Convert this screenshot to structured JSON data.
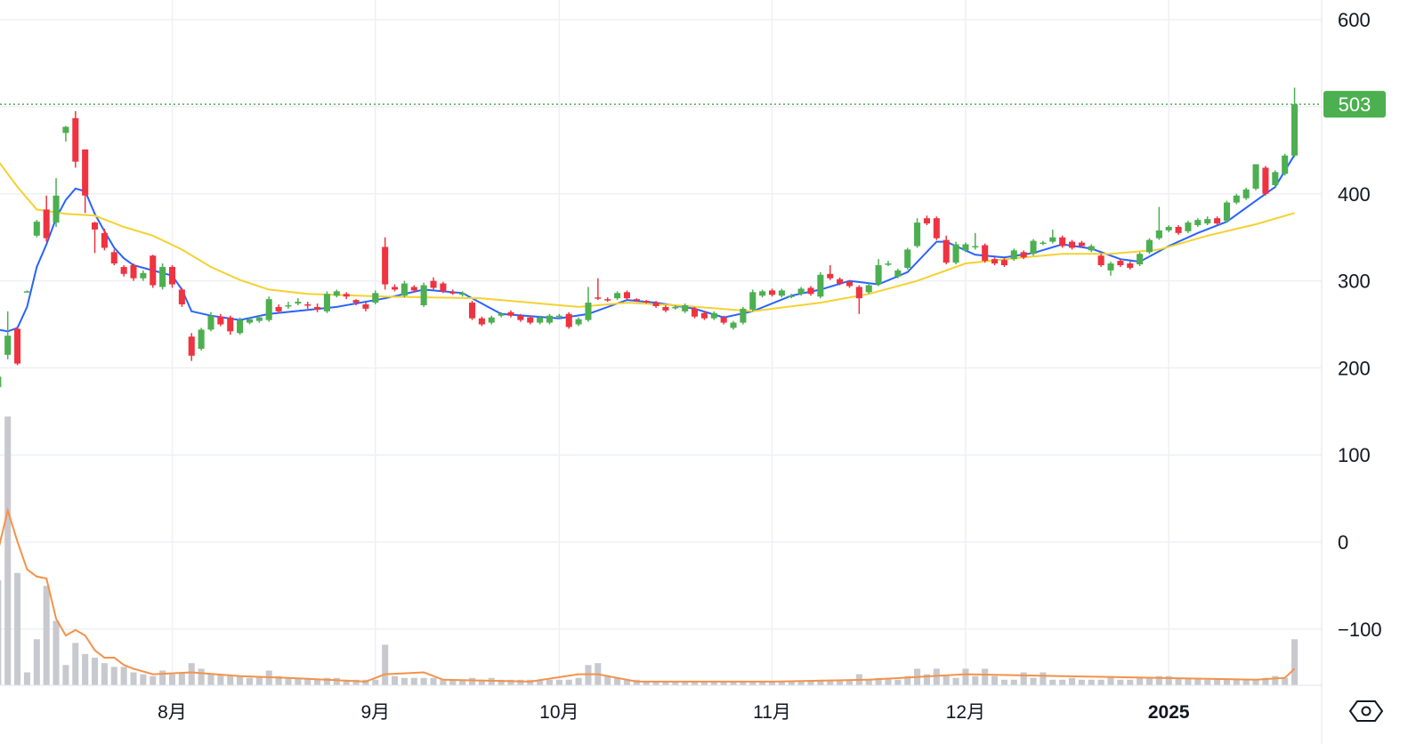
{
  "chart_data": {
    "type": "candlestick",
    "up_color": "#4caf50",
    "down_color": "#ef3340",
    "xlim": [
      0.2,
      136.8
    ],
    "xticks": [
      {
        "value": 18,
        "label": "8月"
      },
      {
        "value": 39,
        "label": "9月"
      },
      {
        "value": 58,
        "label": "10月"
      },
      {
        "value": 80,
        "label": "11月"
      },
      {
        "value": 100,
        "label": "12月"
      },
      {
        "value": 121,
        "label": "2025",
        "bold": true
      }
    ],
    "ylim": [
      -164.6,
      622.7
    ],
    "yticks": [
      600,
      500,
      400,
      300,
      200,
      100,
      0,
      {
        "value": -100,
        "label": "−100"
      }
    ],
    "grid": true,
    "last_line_color": "#4caf50",
    "ohlc": [
      [
        178,
        195,
        172,
        190
      ],
      [
        215,
        265,
        210,
        237
      ],
      [
        245,
        248,
        203,
        205
      ],
      [
        288,
        289,
        287,
        288
      ],
      [
        352,
        370,
        350,
        368
      ],
      [
        382,
        398,
        345,
        349
      ],
      [
        367,
        418,
        362,
        398
      ],
      [
        470,
        478,
        460,
        477
      ],
      [
        487,
        495,
        430,
        437
      ],
      [
        451,
        451,
        378,
        398
      ],
      [
        367,
        368,
        332,
        359
      ],
      [
        355,
        360,
        335,
        338
      ],
      [
        333,
        336,
        318,
        320
      ],
      [
        316,
        318,
        305,
        308
      ],
      [
        318,
        320,
        300,
        303
      ],
      [
        303,
        312,
        300,
        309
      ],
      [
        329,
        330,
        292,
        295
      ],
      [
        293,
        320,
        290,
        316
      ],
      [
        316,
        318,
        292,
        296
      ],
      [
        290,
        292,
        270,
        273
      ],
      [
        236,
        240,
        208,
        214
      ],
      [
        222,
        246,
        220,
        244
      ],
      [
        244,
        264,
        242,
        260
      ],
      [
        259,
        262,
        248,
        250
      ],
      [
        258,
        260,
        238,
        242
      ],
      [
        240,
        258,
        238,
        255
      ],
      [
        252,
        258,
        250,
        256
      ],
      [
        254,
        260,
        252,
        258
      ],
      [
        255,
        282,
        253,
        279
      ],
      [
        270,
        273,
        263,
        265
      ],
      [
        271,
        276,
        268,
        272
      ],
      [
        274,
        280,
        272,
        276
      ],
      [
        273,
        276,
        268,
        272
      ],
      [
        270,
        274,
        264,
        267
      ],
      [
        265,
        288,
        263,
        285
      ],
      [
        283,
        290,
        281,
        288
      ],
      [
        285,
        287,
        279,
        282
      ],
      [
        278,
        279,
        272,
        275
      ],
      [
        273,
        275,
        265,
        268
      ],
      [
        275,
        289,
        273,
        286
      ],
      [
        339,
        350,
        290,
        296
      ],
      [
        293,
        296,
        288,
        290
      ],
      [
        283,
        300,
        281,
        297
      ],
      [
        293,
        295,
        287,
        289
      ],
      [
        272,
        298,
        270,
        295
      ],
      [
        300,
        304,
        290,
        292
      ],
      [
        297,
        299,
        286,
        288
      ],
      [
        287,
        290,
        284,
        286
      ],
      [
        284,
        288,
        282,
        286
      ],
      [
        275,
        277,
        255,
        257
      ],
      [
        257,
        259,
        248,
        250
      ],
      [
        252,
        260,
        250,
        258
      ],
      [
        260,
        264,
        258,
        262
      ],
      [
        264,
        266,
        258,
        260
      ],
      [
        260,
        262,
        253,
        255
      ],
      [
        258,
        260,
        250,
        252
      ],
      [
        252,
        260,
        250,
        258
      ],
      [
        252,
        262,
        250,
        260
      ],
      [
        259,
        262,
        257,
        260
      ],
      [
        262,
        264,
        245,
        247
      ],
      [
        250,
        258,
        248,
        256
      ],
      [
        255,
        293,
        253,
        275
      ],
      [
        281,
        303,
        278,
        280
      ],
      [
        279,
        281,
        276,
        278
      ],
      [
        280,
        288,
        278,
        286
      ],
      [
        287,
        289,
        278,
        280
      ],
      [
        279,
        280,
        276,
        278
      ],
      [
        277,
        278,
        274,
        276
      ],
      [
        275,
        277,
        269,
        271
      ],
      [
        270,
        272,
        264,
        266
      ],
      [
        269,
        272,
        267,
        270
      ],
      [
        265,
        274,
        263,
        272
      ],
      [
        268,
        270,
        257,
        259
      ],
      [
        263,
        265,
        255,
        257
      ],
      [
        257,
        265,
        255,
        263
      ],
      [
        258,
        260,
        250,
        252
      ],
      [
        246,
        254,
        244,
        252
      ],
      [
        252,
        270,
        250,
        268
      ],
      [
        267,
        290,
        265,
        287
      ],
      [
        283,
        290,
        281,
        288
      ],
      [
        289,
        291,
        282,
        284
      ],
      [
        283,
        291,
        281,
        289
      ],
      [
        282,
        285,
        280,
        283
      ],
      [
        285,
        293,
        283,
        291
      ],
      [
        292,
        294,
        283,
        285
      ],
      [
        282,
        310,
        280,
        307
      ],
      [
        308,
        318,
        301,
        303
      ],
      [
        302,
        304,
        295,
        297
      ],
      [
        299,
        301,
        292,
        294
      ],
      [
        293,
        295,
        262,
        280
      ],
      [
        287,
        297,
        285,
        295
      ],
      [
        296,
        325,
        294,
        318
      ],
      [
        319,
        323,
        317,
        320
      ],
      [
        305,
        314,
        303,
        312
      ],
      [
        315,
        338,
        313,
        336
      ],
      [
        340,
        372,
        338,
        367
      ],
      [
        372,
        375,
        364,
        366
      ],
      [
        372,
        374,
        347,
        349
      ],
      [
        347,
        352,
        319,
        321
      ],
      [
        321,
        345,
        319,
        342
      ],
      [
        335,
        344,
        333,
        342
      ],
      [
        339,
        355,
        336,
        340
      ],
      [
        341,
        343,
        321,
        323
      ],
      [
        325,
        327,
        318,
        320
      ],
      [
        324,
        326,
        316,
        318
      ],
      [
        325,
        337,
        323,
        335
      ],
      [
        333,
        335,
        325,
        327
      ],
      [
        331,
        348,
        329,
        346
      ],
      [
        343,
        346,
        341,
        344
      ],
      [
        345,
        359,
        343,
        350
      ],
      [
        350,
        352,
        338,
        340
      ],
      [
        345,
        347,
        336,
        338
      ],
      [
        344,
        346,
        338,
        340
      ],
      [
        335,
        342,
        333,
        340
      ],
      [
        329,
        331,
        316,
        318
      ],
      [
        312,
        322,
        306,
        320
      ],
      [
        323,
        325,
        316,
        318
      ],
      [
        320,
        322,
        313,
        315
      ],
      [
        319,
        333,
        317,
        331
      ],
      [
        333,
        349,
        331,
        347
      ],
      [
        349,
        385,
        347,
        358
      ],
      [
        358,
        364,
        356,
        362
      ],
      [
        362,
        364,
        353,
        355
      ],
      [
        357,
        369,
        355,
        367
      ],
      [
        364,
        372,
        362,
        370
      ],
      [
        366,
        374,
        364,
        371
      ],
      [
        372,
        374,
        364,
        366
      ],
      [
        369,
        392,
        367,
        390
      ],
      [
        390,
        400,
        388,
        398
      ],
      [
        395,
        407,
        393,
        405
      ],
      [
        406,
        434,
        404,
        434
      ],
      [
        430,
        432,
        398,
        400
      ],
      [
        410,
        427,
        408,
        425
      ],
      [
        423,
        446,
        421,
        444
      ],
      [
        444,
        522,
        442,
        503
      ]
    ],
    "volume": {
      "color": "#c8c9cf",
      "ylim": [
        0,
        160
      ],
      "values": [
        57,
        146,
        61,
        7,
        25,
        54,
        35,
        11,
        23,
        17,
        15,
        12,
        10,
        10,
        7,
        6,
        5,
        8,
        6,
        7,
        12,
        9,
        6,
        6,
        5,
        5,
        4,
        5,
        8,
        5,
        4,
        4,
        4,
        3,
        4,
        4,
        3,
        3,
        3,
        3,
        22,
        5,
        4,
        4,
        4,
        4,
        3,
        3,
        3,
        4,
        3,
        4,
        3,
        3,
        3,
        3,
        3,
        3,
        3,
        3,
        4,
        11,
        12,
        5,
        4,
        3,
        3,
        2,
        2,
        2,
        2,
        2,
        2,
        2,
        2,
        2,
        2,
        2,
        2,
        2,
        2,
        2,
        2,
        2,
        2,
        3,
        3,
        3,
        3,
        6,
        3,
        4,
        4,
        3,
        5,
        9,
        6,
        9,
        5,
        4,
        9,
        5,
        9,
        5,
        3,
        3,
        7,
        4,
        7,
        3,
        3,
        4,
        3,
        3,
        3,
        5,
        3,
        3,
        4,
        4,
        5,
        5,
        4,
        4,
        4,
        3,
        3,
        3,
        3,
        3,
        3,
        4,
        5,
        4,
        25
      ]
    },
    "volume_ma": {
      "color": "#f4924a",
      "x": [
        0,
        1,
        2,
        3,
        4,
        5,
        6,
        7,
        8,
        9,
        10,
        11,
        12,
        13,
        14,
        16,
        20,
        25,
        30,
        38,
        40,
        44,
        46,
        55,
        60,
        62,
        66,
        80,
        90,
        100,
        110,
        120,
        130,
        133,
        134
      ],
      "values": [
        73,
        95,
        78,
        63,
        59,
        58,
        36,
        27,
        30,
        27,
        19,
        15,
        15,
        11,
        9,
        6,
        7,
        5,
        4,
        2,
        6,
        7,
        3,
        2,
        6,
        6,
        2,
        2,
        3,
        6,
        5,
        4,
        3,
        4,
        9
      ]
    },
    "ma": [
      {
        "color": "#2962ff",
        "x": [
          0,
          1,
          2,
          3,
          4,
          5,
          6,
          7,
          8,
          9,
          10,
          11,
          12,
          13,
          14,
          16,
          18,
          19,
          20,
          22,
          25,
          28,
          35,
          40,
          44,
          48,
          52,
          58,
          61,
          65,
          68,
          72,
          75,
          78,
          82,
          85,
          88,
          91,
          94,
          97,
          98,
          101,
          104,
          107,
          110,
          113,
          116,
          118,
          121,
          124,
          127,
          130,
          132,
          134
        ],
        "values": [
          244,
          242,
          246,
          270,
          316,
          342,
          372,
          393,
          406,
          403,
          377,
          357,
          338,
          326,
          318,
          312,
          306,
          290,
          265,
          260,
          255,
          262,
          270,
          280,
          290,
          286,
          262,
          257,
          262,
          278,
          275,
          268,
          258,
          265,
          283,
          290,
          300,
          296,
          310,
          345,
          345,
          330,
          327,
          332,
          342,
          337,
          325,
          322,
          340,
          355,
          368,
          392,
          408,
          445
        ]
      },
      {
        "color": "#f5d130",
        "x": [
          0,
          2,
          4,
          7,
          10,
          13,
          16,
          19,
          22,
          25,
          28,
          32,
          40,
          50,
          60,
          65,
          70,
          78,
          85,
          90,
          95,
          100,
          105,
          110,
          115,
          120,
          125,
          130,
          134
        ],
        "values": [
          438,
          408,
          382,
          377,
          375,
          362,
          352,
          336,
          316,
          301,
          290,
          285,
          282,
          280,
          270,
          275,
          272,
          265,
          275,
          285,
          300,
          320,
          326,
          331,
          331,
          336,
          352,
          365,
          378
        ]
      }
    ]
  }
}
